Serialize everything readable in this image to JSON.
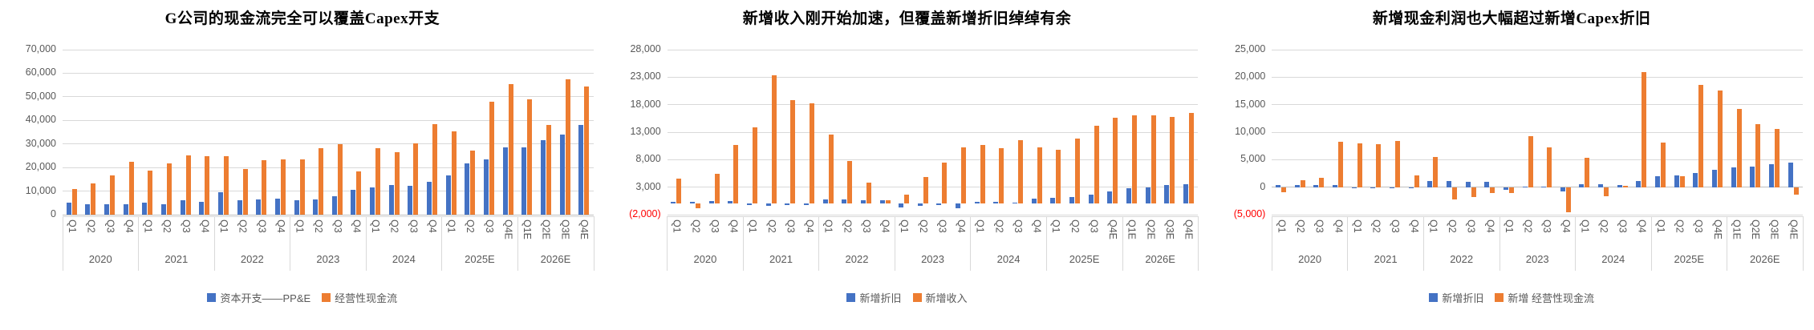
{
  "page": {
    "background": "#ffffff"
  },
  "colors": {
    "series_blue": "#4472C4",
    "series_orange": "#ED7D31",
    "gridline": "#D9D9D9",
    "axis_text": "#595959",
    "negative_label": "#FF0000",
    "title_text": "#000000"
  },
  "chart_data": [
    {
      "type": "bar",
      "title": "G公司的现金流完全可以覆盖Capex开支",
      "legend_position": "bottom",
      "grid": true,
      "y_axis": {
        "min": 0,
        "max": 70000,
        "step": 10000,
        "labels": [
          {
            "value": 70000,
            "text": "70,000"
          },
          {
            "value": 60000,
            "text": "60,000"
          },
          {
            "value": 50000,
            "text": "50,000"
          },
          {
            "value": 40000,
            "text": "40,000"
          },
          {
            "value": 30000,
            "text": "30,000"
          },
          {
            "value": 20000,
            "text": "20,000"
          },
          {
            "value": 10000,
            "text": "10,000"
          },
          {
            "value": 0,
            "text": "0"
          }
        ]
      },
      "x_axis": {
        "years": [
          {
            "label": "2020",
            "quarters": [
              "Q1",
              "Q2",
              "Q3",
              "Q4"
            ]
          },
          {
            "label": "2021",
            "quarters": [
              "Q1",
              "Q2",
              "Q3",
              "Q4"
            ]
          },
          {
            "label": "2022",
            "quarters": [
              "Q1",
              "Q2",
              "Q3",
              "Q4"
            ]
          },
          {
            "label": "2023",
            "quarters": [
              "Q1",
              "Q2",
              "Q3",
              "Q4"
            ]
          },
          {
            "label": "2024",
            "quarters": [
              "Q1",
              "Q2",
              "Q3",
              "Q4"
            ]
          },
          {
            "label": "2025E",
            "quarters": [
              "Q1",
              "Q2",
              "Q3",
              "Q4E"
            ]
          },
          {
            "label": "2026E",
            "quarters": [
              "Q1E",
              "Q2E",
              "Q3E",
              "Q4E"
            ]
          }
        ]
      },
      "series": [
        {
          "name": "资本开支——PP&E",
          "color": "#4472C4",
          "values": [
            5100,
            4400,
            4400,
            4500,
            5100,
            4400,
            6100,
            5500,
            9400,
            6100,
            6400,
            6900,
            6100,
            6500,
            7700,
            10400,
            11400,
            12700,
            12400,
            13800,
            16500,
            21800,
            23300,
            28600,
            28600,
            31700,
            34100,
            38200
          ]
        },
        {
          "name": "经营性现金流",
          "color": "#ED7D31",
          "values": [
            10800,
            13300,
            16700,
            22300,
            18600,
            21700,
            25100,
            24800,
            24800,
            19500,
            23200,
            23300,
            23300,
            28300,
            30000,
            18300,
            28200,
            26400,
            30100,
            38300,
            35400,
            27200,
            47800,
            55300,
            48800,
            37900,
            57400,
            54300
          ]
        }
      ]
    },
    {
      "type": "bar",
      "title": "新增收入刚开始加速，但覆盖新增折旧绰绰有余",
      "legend_position": "bottom",
      "grid": true,
      "y_axis": {
        "min": -2000,
        "max": 28000,
        "step": 5000,
        "labels": [
          {
            "value": 28000,
            "text": "28,000"
          },
          {
            "value": 23000,
            "text": "23,000"
          },
          {
            "value": 18000,
            "text": "18,000"
          },
          {
            "value": 13000,
            "text": "13,000"
          },
          {
            "value": 8000,
            "text": "8,000"
          },
          {
            "value": 3000,
            "text": "3,000"
          },
          {
            "value": -2000,
            "text": "(2,000)",
            "negative": true
          }
        ]
      },
      "x_axis": {
        "years": [
          {
            "label": "2020",
            "quarters": [
              "Q1",
              "Q2",
              "Q3",
              "Q4"
            ]
          },
          {
            "label": "2021",
            "quarters": [
              "Q1",
              "Q2",
              "Q3",
              "Q4"
            ]
          },
          {
            "label": "2022",
            "quarters": [
              "Q1",
              "Q2",
              "Q3",
              "Q4"
            ]
          },
          {
            "label": "2023",
            "quarters": [
              "Q1",
              "Q2",
              "Q3",
              "Q4"
            ]
          },
          {
            "label": "2024",
            "quarters": [
              "Q1",
              "Q2",
              "Q3",
              "Q4"
            ]
          },
          {
            "label": "2025E",
            "quarters": [
              "Q1",
              "Q2",
              "Q3",
              "Q4E"
            ]
          },
          {
            "label": "2026E",
            "quarters": [
              "Q1E",
              "Q2E",
              "Q3E",
              "Q4E"
            ]
          }
        ]
      },
      "series": [
        {
          "name": "新增折旧",
          "color": "#4472C4",
          "values": [
            350,
            350,
            450,
            450,
            -300,
            -400,
            -200,
            -250,
            800,
            700,
            550,
            600,
            -650,
            -450,
            -250,
            -850,
            300,
            400,
            250,
            900,
            1100,
            1150,
            1600,
            2200,
            2750,
            3000,
            3350,
            3500
          ]
        },
        {
          "name": "新增收入",
          "color": "#ED7D31",
          "values": [
            4500,
            -800,
            5400,
            10700,
            13900,
            23300,
            18800,
            18200,
            12600,
            7800,
            3800,
            650,
            1650,
            4800,
            7400,
            10200,
            10600,
            10100,
            11500,
            10200,
            9800,
            11800,
            14200,
            15600,
            16000,
            16000,
            15800,
            16500
          ]
        }
      ]
    },
    {
      "type": "bar",
      "title": "新增现金利润也大幅超过新增Capex折旧",
      "legend_position": "bottom",
      "grid": true,
      "y_axis": {
        "min": -5000,
        "max": 25000,
        "step": 5000,
        "labels": [
          {
            "value": 25000,
            "text": "25,000"
          },
          {
            "value": 20000,
            "text": "20,000"
          },
          {
            "value": 15000,
            "text": "15,000"
          },
          {
            "value": 10000,
            "text": "10,000"
          },
          {
            "value": 5000,
            "text": "5,000"
          },
          {
            "value": 0,
            "text": "0"
          },
          {
            "value": -5000,
            "text": "(5,000)",
            "negative": true
          }
        ]
      },
      "x_axis": {
        "years": [
          {
            "label": "2020",
            "quarters": [
              "Q1",
              "Q2",
              "Q3",
              "Q4"
            ]
          },
          {
            "label": "2021",
            "quarters": [
              "Q1",
              "Q2",
              "Q3",
              "Q4"
            ]
          },
          {
            "label": "2022",
            "quarters": [
              "Q1",
              "Q2",
              "Q3",
              "Q4"
            ]
          },
          {
            "label": "2023",
            "quarters": [
              "Q1",
              "Q2",
              "Q3",
              "Q4"
            ]
          },
          {
            "label": "2024",
            "quarters": [
              "Q1",
              "Q2",
              "Q3",
              "Q4"
            ]
          },
          {
            "label": "2025E",
            "quarters": [
              "Q1",
              "Q2",
              "Q3",
              "Q4E"
            ]
          },
          {
            "label": "2026E",
            "quarters": [
              "Q1E",
              "Q2E",
              "Q3E",
              "Q4E"
            ]
          }
        ]
      },
      "series": [
        {
          "name": "新增折旧",
          "color": "#4472C4",
          "values": [
            400,
            350,
            400,
            450,
            -150,
            -200,
            -200,
            -200,
            1050,
            1100,
            900,
            950,
            -550,
            150,
            100,
            -800,
            550,
            500,
            450,
            1100,
            2000,
            2200,
            2600,
            3100,
            3600,
            3800,
            4200,
            4500
          ]
        },
        {
          "name": "新增 经营性现金流",
          "color": "#ED7D31",
          "values": [
            -900,
            1200,
            1700,
            8200,
            8000,
            7800,
            8400,
            2200,
            5450,
            -2200,
            -1800,
            -1000,
            -1100,
            9300,
            7300,
            -4600,
            5400,
            -1700,
            200,
            20900,
            8100,
            2000,
            18600,
            17600,
            14200,
            11400,
            10600,
            -1300
          ]
        }
      ]
    }
  ]
}
